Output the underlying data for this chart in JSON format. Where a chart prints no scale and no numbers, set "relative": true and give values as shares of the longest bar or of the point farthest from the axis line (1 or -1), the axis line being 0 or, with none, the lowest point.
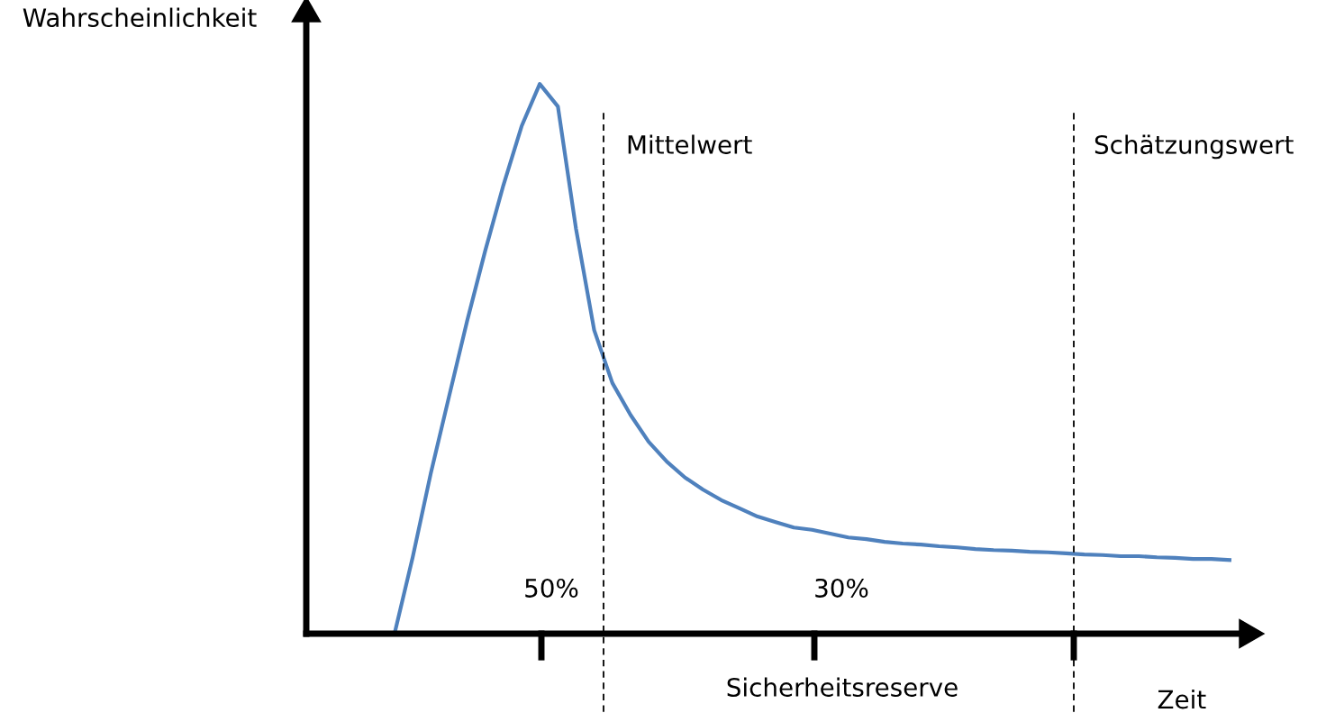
{
  "chart_data": {
    "type": "line",
    "relative": true,
    "xlabel": "Zeit",
    "categories": [
      null,
      null,
      null,
      null,
      null,
      null,
      null,
      null,
      null,
      null,
      null,
      null,
      null,
      null,
      null,
      null,
      null,
      null,
      null,
      null,
      null,
      null,
      null,
      null,
      null,
      null,
      null,
      null,
      null,
      null,
      null,
      null,
      null,
      null,
      null,
      null,
      null,
      null,
      null,
      null,
      null,
      null,
      null,
      null,
      null,
      null,
      null
    ],
    "series": [
      {
        "color": "#4f81bd",
        "values": [
          0,
          0.139,
          0.292,
          0.431,
          0.569,
          0.697,
          0.816,
          0.923,
          1,
          0.959,
          0.736,
          0.552,
          0.456,
          0.398,
          0.349,
          0.313,
          0.284,
          0.262,
          0.243,
          0.228,
          0.213,
          0.203,
          0.193,
          0.189,
          0.182,
          0.175,
          0.172,
          0.167,
          0.164,
          0.162,
          0.159,
          0.157,
          0.154,
          0.152,
          0.151,
          0.149,
          0.148,
          0.146,
          0.144,
          0.143,
          0.141,
          0.141,
          0.139,
          0.138,
          0.136,
          0.136,
          0.134
        ]
      }
    ],
    "annotations": [
      "Wahrscheinlichkeit",
      "Mittelwert",
      "Schätzungswert",
      "50%",
      "30%",
      "Sicherheitsreserve"
    ],
    "grid": false,
    "legend": false,
    "marker": "none",
    "line_style": "solid"
  }
}
